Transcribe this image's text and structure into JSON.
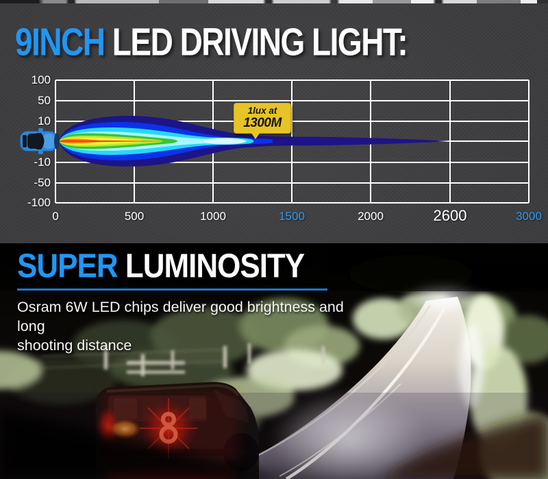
{
  "page": {
    "bg": "#39393b",
    "accent_blue": "#2196f3"
  },
  "header": {
    "title_highlight": "9INCH",
    "title_rest": " LED DRIVING LIGHT:"
  },
  "chart_data": {
    "type": "diagram",
    "subtype": "beam-pattern-top-view",
    "title": "9INCH LED DRIVING LIGHT:",
    "x_unit": "m",
    "x_range": [
      0,
      3000
    ],
    "grid": true,
    "grid_color": "#ffffff",
    "x_ticks": [
      {
        "label": "0",
        "color": "#ffffff",
        "em": false
      },
      {
        "label": "500",
        "color": "#ffffff",
        "em": false
      },
      {
        "label": "1000",
        "color": "#ffffff",
        "em": false
      },
      {
        "label": "1500",
        "color": "#2e9bf0",
        "em": false
      },
      {
        "label": "2000",
        "color": "#ffffff",
        "em": false
      },
      {
        "label": "2600",
        "color": "#ffffff",
        "em": true
      },
      {
        "label": "3000",
        "color": "#2e9bf0",
        "em": false
      }
    ],
    "y_ticks": [
      "100",
      "50",
      "10",
      "-10",
      "-50",
      "-100"
    ],
    "y_tick_values": [
      100,
      50,
      10,
      -10,
      -50,
      -100
    ],
    "annotation": {
      "line1": "1lux at",
      "line2": "1300M",
      "lux": 1,
      "distance_m": 1300
    },
    "beam_end_m": 2600,
    "beam_colors": [
      "#1d1488",
      "#0a33e8",
      "#26d9f7",
      "#a8f6fe",
      "#37c435",
      "#bce637",
      "#f5f233",
      "#fb9312",
      "#f4400e"
    ],
    "car_color": "#2f86d9"
  },
  "luminosity": {
    "title_highlight": "SUPER",
    "title_rest": " LUMINOSITY",
    "description_line1": "Osram 6W LED chips deliver good brightness and long",
    "description_line2": "shooting distance"
  }
}
